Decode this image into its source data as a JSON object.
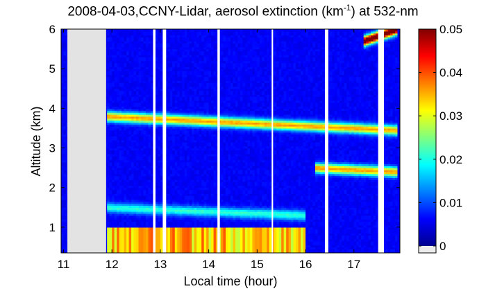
{
  "chart_data": {
    "type": "heatmap",
    "title": {
      "prefix": "2008-04-03,CCNY-Lidar, aerosol extinction (km",
      "superscript": "-1",
      "suffix": ") at 532-nm"
    },
    "xlabel": "Local time (hour)",
    "ylabel": "Altitude (km)",
    "xlim": [
      10.95,
      17.95
    ],
    "ylim": [
      0.35,
      6
    ],
    "xticks": [
      11,
      12,
      13,
      14,
      15,
      16,
      17
    ],
    "yticks": [
      1,
      2,
      3,
      4,
      5,
      6
    ],
    "colorbar": {
      "range": [
        0,
        0.05
      ],
      "ticks": [
        0,
        0.01,
        0.02,
        0.03,
        0.04,
        0.05
      ],
      "tick_labels": [
        "0",
        "0.01",
        "0.02",
        "0.03",
        "0.04",
        "0.05"
      ]
    },
    "data_gaps_hours": [
      [
        11.08,
        11.88
      ],
      [
        12.85,
        12.9
      ],
      [
        13.05,
        13.12
      ],
      [
        14.18,
        14.23
      ],
      [
        15.3,
        15.33
      ],
      [
        16.4,
        16.47
      ],
      [
        17.5,
        17.62
      ]
    ],
    "features": [
      {
        "name": "boundary layer aerosol",
        "time": [
          11.9,
          16.0
        ],
        "altitude_top_km": 1.0,
        "extinction_max": 0.04
      },
      {
        "name": "aerosol layer",
        "time": [
          11.9,
          17.9
        ],
        "altitude_km": [
          3.8,
          3.45
        ],
        "extinction_max": 0.03
      },
      {
        "name": "aerosol layer",
        "time": [
          16.2,
          17.9
        ],
        "altitude_km": [
          2.5,
          2.4
        ],
        "extinction_max": 0.03
      },
      {
        "name": "aerosol layer",
        "time": [
          11.9,
          16.0
        ],
        "altitude_km": [
          1.5,
          1.3
        ],
        "extinction_max": 0.015
      },
      {
        "name": "high extinction cloud top",
        "time": [
          17.2,
          17.9
        ],
        "altitude_km": [
          5.7,
          6.0
        ],
        "extinction_max": 0.05
      }
    ]
  }
}
